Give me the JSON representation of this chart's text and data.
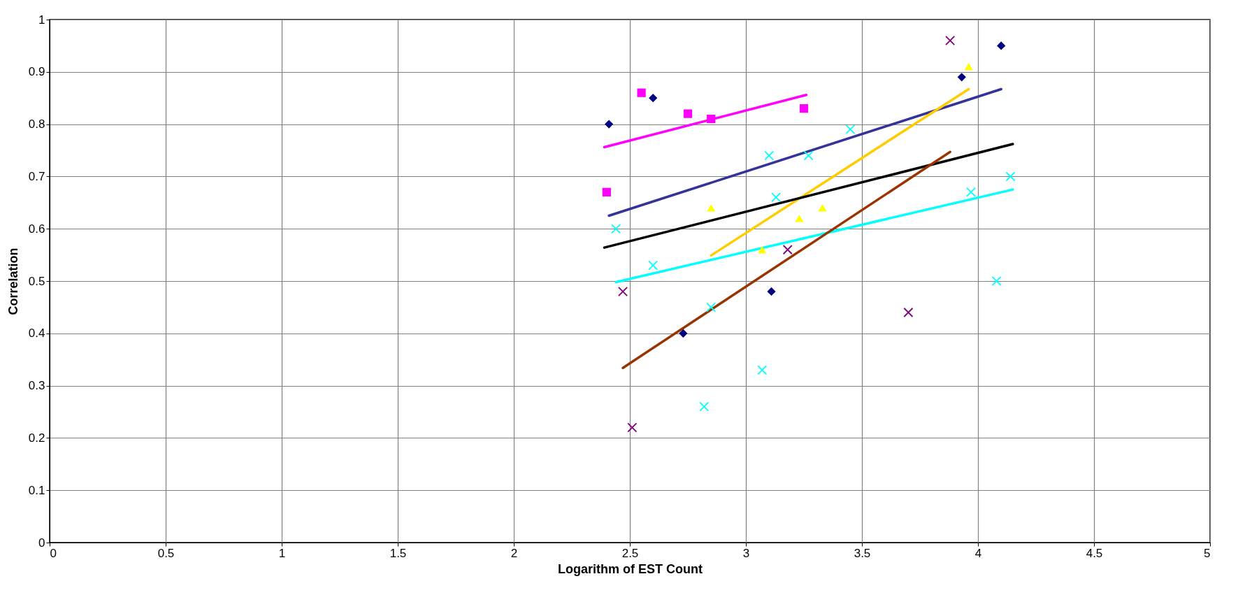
{
  "chart_data": {
    "type": "scatter",
    "xlabel": "Logarithm of EST Count",
    "ylabel": "Correlation",
    "xlim": [
      0,
      5
    ],
    "xticks": [
      0,
      0.5,
      1,
      1.5,
      2,
      2.5,
      3,
      3.5,
      4,
      4.5,
      5
    ],
    "ylim": [
      0,
      1
    ],
    "yticks": [
      0,
      0.1,
      0.2,
      0.3,
      0.4,
      0.5,
      0.6,
      0.7,
      0.8,
      0.9,
      1
    ],
    "grid": true,
    "series": [
      {
        "marker": "diamond",
        "color": "#000080",
        "x": [
          2.41,
          2.6,
          2.73,
          3.11,
          3.93,
          4.1
        ],
        "values": [
          0.8,
          0.85,
          0.4,
          0.48,
          0.89,
          0.95
        ]
      },
      {
        "marker": "square",
        "color": "#ff00ff",
        "x": [
          2.4,
          2.55,
          2.75,
          2.85,
          3.25
        ],
        "values": [
          0.67,
          0.86,
          0.82,
          0.81,
          0.83
        ]
      },
      {
        "marker": "triangle",
        "color": "#ffff00",
        "x": [
          2.85,
          3.07,
          3.23,
          3.33,
          3.96
        ],
        "values": [
          0.64,
          0.56,
          0.62,
          0.64,
          0.91
        ]
      },
      {
        "marker": "cross",
        "color": "#00ffff",
        "x": [
          2.44,
          2.6,
          2.82,
          2.85,
          3.07,
          3.1,
          3.13,
          3.27,
          3.45,
          3.97,
          4.08,
          4.14
        ],
        "values": [
          0.6,
          0.53,
          0.26,
          0.45,
          0.33,
          0.74,
          0.66,
          0.74,
          0.79,
          0.67,
          0.5,
          0.7
        ]
      },
      {
        "marker": "cross",
        "color": "#800080",
        "x": [
          2.47,
          2.51,
          3.18,
          3.7,
          3.88
        ],
        "values": [
          0.48,
          0.22,
          0.56,
          0.44,
          0.96
        ]
      },
      {
        "type": "line",
        "color": "#ff00ff",
        "x": [
          2.39,
          3.26
        ],
        "values": [
          0.756,
          0.856
        ]
      },
      {
        "type": "line",
        "color": "#333399",
        "x": [
          2.41,
          4.1
        ],
        "values": [
          0.625,
          0.867
        ]
      },
      {
        "type": "line",
        "color": "#ffcc00",
        "x": [
          2.85,
          3.96
        ],
        "values": [
          0.549,
          0.867
        ]
      },
      {
        "type": "line",
        "color": "#000000",
        "x": [
          2.39,
          4.15
        ],
        "values": [
          0.564,
          0.762
        ]
      },
      {
        "type": "line",
        "color": "#00ffff",
        "x": [
          2.44,
          4.15
        ],
        "values": [
          0.498,
          0.675
        ]
      },
      {
        "type": "line",
        "color": "#993300",
        "x": [
          2.47,
          3.88
        ],
        "values": [
          0.334,
          0.747
        ]
      }
    ]
  }
}
